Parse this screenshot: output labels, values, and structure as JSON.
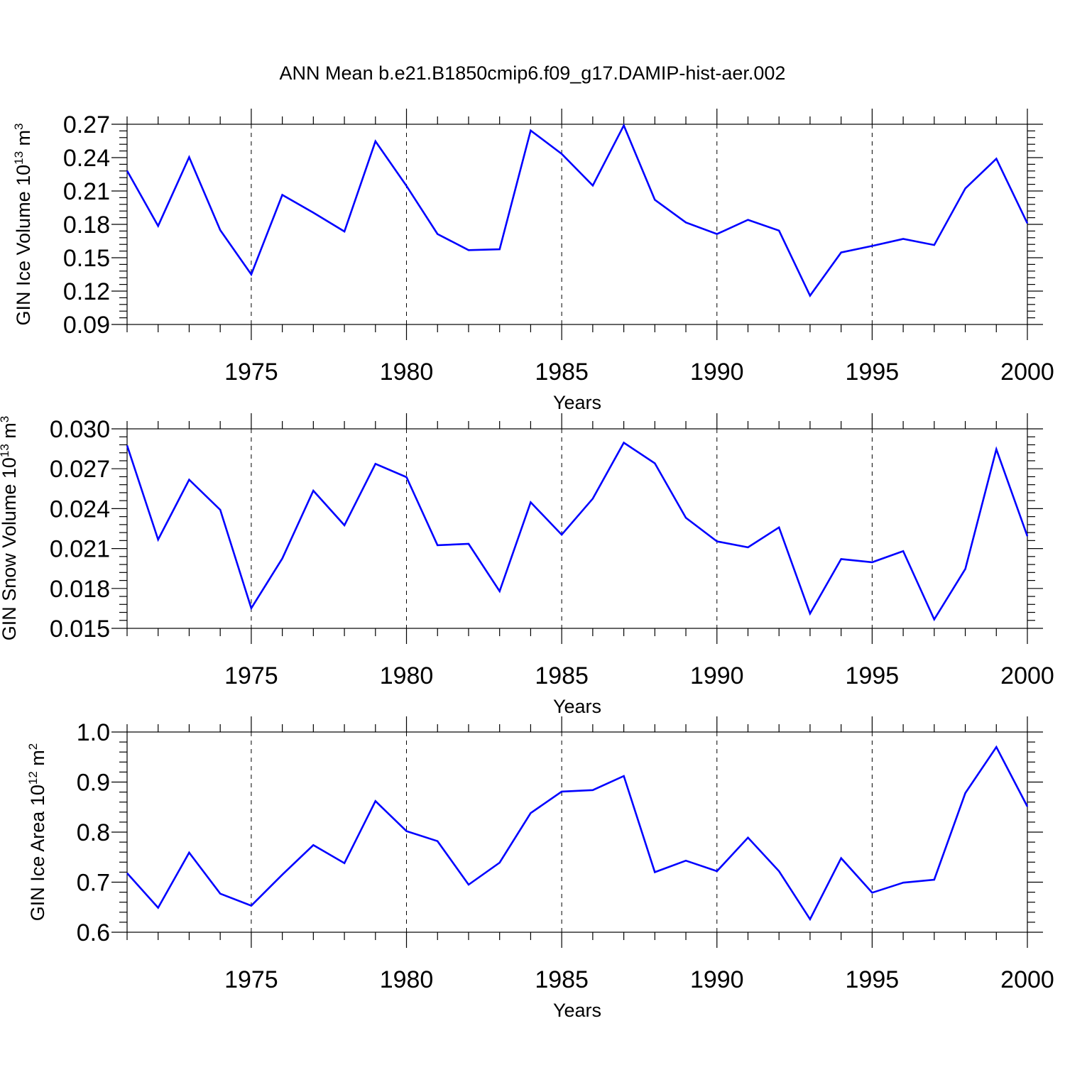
{
  "title": "ANN Mean b.e21.B1850cmip6.f09_g17.DAMIP-hist-aer.002",
  "chart_data": [
    {
      "type": "line",
      "xlabel": "Years",
      "ylabel_main": "GIN Ice Volume 10",
      "ylabel_exp": "13",
      "ylabel_unit": "m",
      "ylabel_unit_exp": "3",
      "xlim": [
        1971,
        2000
      ],
      "ylim": [
        0.09,
        0.27
      ],
      "x_ticks": [
        1975,
        1980,
        1985,
        1990,
        1995,
        2000
      ],
      "y_ticks": [
        "0.09",
        "0.12",
        "0.15",
        "0.18",
        "0.21",
        "0.24",
        "0.27"
      ],
      "grid": "vertical dashed at major x ticks",
      "color": "#0000ff",
      "x": [
        1971,
        1972,
        1973,
        1974,
        1975,
        1976,
        1977,
        1978,
        1979,
        1980,
        1981,
        1982,
        1983,
        1984,
        1985,
        1986,
        1987,
        1988,
        1989,
        1990,
        1991,
        1992,
        1993,
        1994,
        1995,
        1996,
        1997,
        1998,
        1999,
        2000
      ],
      "values": [
        0.2282,
        0.1786,
        0.2404,
        0.1748,
        0.135,
        0.2065,
        0.1905,
        0.1736,
        0.2547,
        0.2146,
        0.1713,
        0.1568,
        0.1576,
        0.2644,
        0.2434,
        0.2149,
        0.2689,
        0.2021,
        0.1817,
        0.1713,
        0.1841,
        0.1744,
        0.1159,
        0.1547,
        0.1606,
        0.1669,
        0.1614,
        0.2123,
        0.239,
        0.1809
      ]
    },
    {
      "type": "line",
      "xlabel": "Years",
      "ylabel_main": "GIN Snow Volume 10",
      "ylabel_exp": "13",
      "ylabel_unit": "m",
      "ylabel_unit_exp": "3",
      "xlim": [
        1971,
        2000
      ],
      "ylim": [
        0.015,
        0.03
      ],
      "x_ticks": [
        1975,
        1980,
        1985,
        1990,
        1995,
        2000
      ],
      "y_ticks": [
        "0.015",
        "0.018",
        "0.021",
        "0.024",
        "0.027",
        "0.030"
      ],
      "grid": "vertical dashed at major x ticks",
      "color": "#0000ff",
      "x": [
        1971,
        1972,
        1973,
        1974,
        1975,
        1976,
        1977,
        1978,
        1979,
        1980,
        1981,
        1982,
        1983,
        1984,
        1985,
        1986,
        1987,
        1988,
        1989,
        1990,
        1991,
        1992,
        1993,
        1994,
        1995,
        1996,
        1997,
        1998,
        1999,
        2000
      ],
      "values": [
        0.02875,
        0.02167,
        0.02618,
        0.02391,
        0.01651,
        0.02025,
        0.02535,
        0.02275,
        0.02737,
        0.02637,
        0.02125,
        0.02135,
        0.01779,
        0.02448,
        0.02204,
        0.02475,
        0.02896,
        0.02741,
        0.02331,
        0.02154,
        0.02109,
        0.02259,
        0.01611,
        0.02021,
        0.01997,
        0.02081,
        0.01567,
        0.01947,
        0.02846,
        0.02193
      ]
    },
    {
      "type": "line",
      "xlabel": "Years",
      "ylabel_main": "GIN Ice Area 10",
      "ylabel_exp": "12",
      "ylabel_unit": "m",
      "ylabel_unit_exp": "2",
      "xlim": [
        1971,
        2000
      ],
      "ylim": [
        0.6,
        1.0
      ],
      "x_ticks": [
        1975,
        1980,
        1985,
        1990,
        1995,
        2000
      ],
      "y_ticks": [
        "0.6",
        "0.7",
        "0.8",
        "0.9",
        "1.0"
      ],
      "grid": "vertical dashed at major x ticks",
      "color": "#0000ff",
      "x": [
        1971,
        1972,
        1973,
        1974,
        1975,
        1976,
        1977,
        1978,
        1979,
        1980,
        1981,
        1982,
        1983,
        1984,
        1985,
        1986,
        1987,
        1988,
        1989,
        1990,
        1991,
        1992,
        1993,
        1994,
        1995,
        1996,
        1997,
        1998,
        1999,
        2000
      ],
      "values": [
        0.718,
        0.649,
        0.759,
        0.677,
        0.653,
        0.715,
        0.774,
        0.738,
        0.862,
        0.802,
        0.782,
        0.695,
        0.739,
        0.838,
        0.881,
        0.884,
        0.912,
        0.72,
        0.743,
        0.722,
        0.789,
        0.722,
        0.626,
        0.748,
        0.679,
        0.699,
        0.705,
        0.878,
        0.97,
        0.851
      ]
    }
  ]
}
